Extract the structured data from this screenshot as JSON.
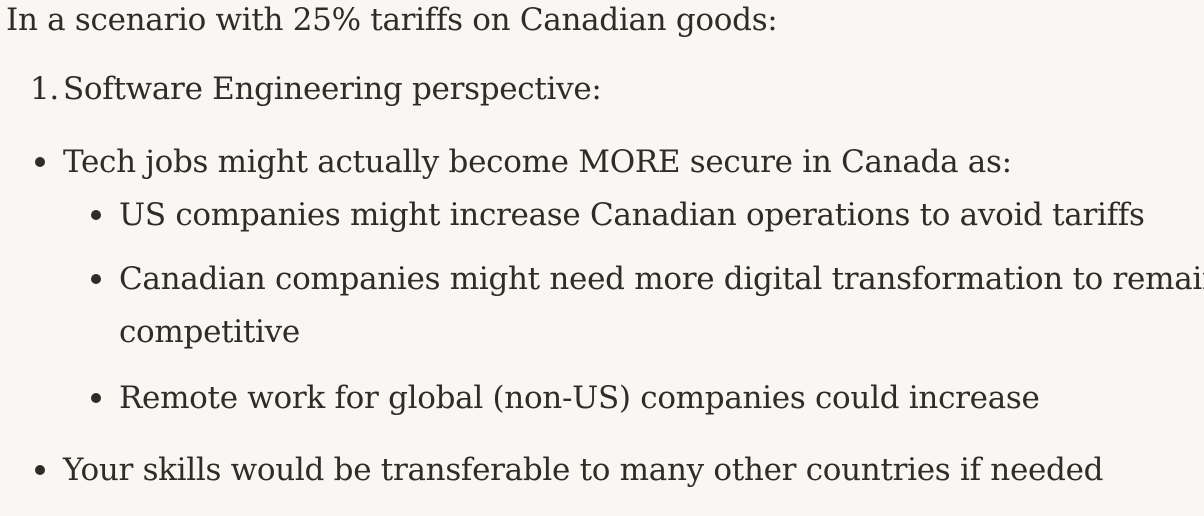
{
  "message": {
    "intro": "In a scenario with 25% tariffs on Canadian goods:",
    "numbered_item_1": {
      "marker": "1.",
      "text": "Software Engineering perspective:"
    },
    "bullets": [
      {
        "text": "Tech jobs might actually become MORE secure in Canada as:",
        "sub_bullets": [
          {
            "text": "US companies might increase Canadian operations to avoid tariffs"
          },
          {
            "text_line1": "Canadian companies might need more digital transformation to remain",
            "text_line2": "competitive"
          },
          {
            "text": "Remote work for global (non-US) companies could increase"
          }
        ]
      },
      {
        "text": "Your skills would be transferable to many other countries if needed"
      }
    ]
  }
}
